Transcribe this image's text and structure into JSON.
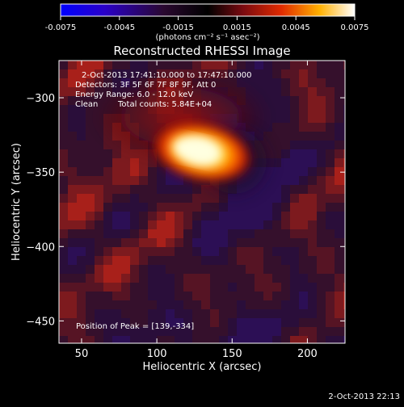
{
  "chart_data": {
    "type": "heatmap",
    "title": "Reconstructed RHESSI Image",
    "xlabel": "Heliocentric X (arcsec)",
    "ylabel": "Heliocentric Y (arcsec)",
    "xlim": [
      35,
      225
    ],
    "ylim": [
      -465,
      -275
    ],
    "xticks": [
      50,
      100,
      150,
      200
    ],
    "yticks": [
      -300,
      -350,
      -400,
      -450
    ],
    "colorbar": {
      "range": [
        -0.0075,
        0.0075
      ],
      "ticks": [
        "-0.0075",
        "-0.0045",
        "-0.0015",
        "0.0015",
        "0.0045",
        "0.0075"
      ],
      "units": "(photons cm⁻² s⁻¹ asec⁻²)",
      "colormap": "blue-purple-red-yellow-white"
    },
    "annotations": {
      "time_range": "2-Oct-2013 17:41:10.000 to 17:47:10.000",
      "detectors": "Detectors: 3F 5F 6F 7F 8F 9F, Att 0",
      "energy_range": "Energy Range: 6.0 - 12.0 keV",
      "clean_label": "Clean",
      "total_counts": "Total counts: 5.84E+04",
      "peak_position": "Position of Peak = [139,-334]"
    },
    "peak": {
      "x": 139,
      "y": -334
    },
    "footer_timestamp": "2-Oct-2013 22:13"
  }
}
